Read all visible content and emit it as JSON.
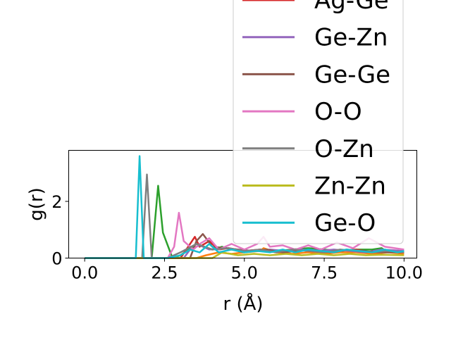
{
  "chart_data": {
    "type": "line",
    "xlabel": "r (Å)",
    "ylabel": "g(r)",
    "xlim": [
      -0.5,
      10.4
    ],
    "ylim": [
      0,
      3.8
    ],
    "xticks": [
      {
        "value": 0.0,
        "label": "0.0"
      },
      {
        "value": 2.5,
        "label": "2.5"
      },
      {
        "value": 5.0,
        "label": "5.0"
      },
      {
        "value": 7.5,
        "label": "7.5"
      },
      {
        "value": 10.0,
        "label": "10.0"
      }
    ],
    "yticks": [
      {
        "value": 0,
        "label": "0"
      },
      {
        "value": 2,
        "label": "2"
      }
    ],
    "grid": false,
    "legend_position": "upper-right (overflowing above plot)",
    "series": [
      {
        "name": "",
        "color": "#ff7f0e",
        "x": [
          0.0,
          3.5,
          3.8,
          4.2,
          4.6,
          5.0,
          5.5,
          5.6,
          6.0,
          6.5,
          7.0,
          7.5,
          8.0,
          8.5,
          9.0,
          9.5,
          10.0
        ],
        "y": [
          0.0,
          0.0,
          0.1,
          0.2,
          0.15,
          0.2,
          0.25,
          0.35,
          0.2,
          0.15,
          0.2,
          0.15,
          0.2,
          0.2,
          0.15,
          0.2,
          0.15
        ]
      },
      {
        "name": "",
        "color": "#2ca02c",
        "x": [
          0.0,
          2.1,
          2.3,
          2.45,
          2.6,
          2.75,
          3.0,
          3.5,
          4.0,
          4.3,
          4.6,
          5.0,
          5.5,
          6.0,
          6.5,
          7.0,
          7.5,
          8.0,
          8.5,
          9.0,
          9.3,
          9.5,
          10.0
        ],
        "y": [
          0.0,
          0.0,
          2.55,
          0.9,
          0.45,
          0.0,
          0.1,
          0.5,
          0.3,
          0.4,
          0.3,
          0.2,
          0.3,
          0.25,
          0.3,
          0.35,
          0.3,
          0.25,
          0.3,
          0.3,
          0.35,
          0.2,
          0.25
        ]
      },
      {
        "name": "Ag-Ge",
        "color": "#d62728",
        "x": [
          0.0,
          3.0,
          3.3,
          3.45,
          3.6,
          3.9,
          4.2,
          4.5,
          5.0,
          5.5,
          6.0,
          6.5,
          7.0,
          7.5,
          8.0,
          8.5,
          9.0,
          9.5,
          10.0
        ],
        "y": [
          0.0,
          0.0,
          0.5,
          0.75,
          0.4,
          0.6,
          0.3,
          0.35,
          0.25,
          0.3,
          0.2,
          0.3,
          0.25,
          0.2,
          0.25,
          0.3,
          0.2,
          0.25,
          0.2
        ]
      },
      {
        "name": "Ge-Zn",
        "color": "#9467bd",
        "x": [
          0.0,
          3.1,
          3.3,
          3.6,
          3.9,
          4.3,
          4.8,
          5.3,
          5.8,
          6.3,
          6.8,
          7.3,
          7.8,
          8.3,
          8.8,
          9.3,
          10.0
        ],
        "y": [
          0.0,
          0.0,
          0.3,
          0.45,
          0.3,
          0.35,
          0.3,
          0.25,
          0.3,
          0.25,
          0.3,
          0.25,
          0.3,
          0.25,
          0.2,
          0.3,
          0.25
        ]
      },
      {
        "name": "Ge-Ge",
        "color": "#8c564b",
        "x": [
          0.0,
          3.3,
          3.5,
          3.7,
          4.0,
          4.4,
          4.8,
          5.2,
          5.7,
          6.2,
          6.7,
          7.2,
          7.7,
          8.2,
          8.7,
          9.2,
          10.0
        ],
        "y": [
          0.0,
          0.0,
          0.6,
          0.85,
          0.4,
          0.35,
          0.3,
          0.25,
          0.3,
          0.2,
          0.25,
          0.3,
          0.2,
          0.3,
          0.25,
          0.2,
          0.2
        ]
      },
      {
        "name": "O-O",
        "color": "#e377c2",
        "x": [
          0.0,
          2.6,
          2.8,
          2.95,
          3.1,
          3.4,
          3.6,
          3.9,
          4.2,
          4.6,
          5.0,
          5.4,
          5.6,
          5.8,
          6.2,
          6.6,
          7.0,
          7.4,
          7.9,
          8.4,
          8.9,
          9.4,
          10.0
        ],
        "y": [
          0.0,
          0.0,
          0.4,
          1.6,
          0.6,
          0.3,
          0.5,
          0.7,
          0.3,
          0.5,
          0.3,
          0.5,
          0.75,
          0.4,
          0.45,
          0.3,
          0.45,
          0.3,
          0.55,
          0.35,
          0.7,
          0.4,
          0.3
        ]
      },
      {
        "name": "O-Zn",
        "color": "#7f7f7f",
        "x": [
          0.0,
          1.8,
          1.95,
          2.1,
          2.6,
          3.0,
          3.5,
          4.0,
          4.5,
          5.0,
          5.5,
          6.0,
          6.5,
          7.0,
          7.5,
          8.0,
          8.5,
          9.0,
          9.5,
          10.0
        ],
        "y": [
          0.0,
          0.0,
          2.95,
          0.0,
          0.0,
          0.2,
          0.5,
          0.3,
          0.35,
          0.25,
          0.3,
          0.2,
          0.3,
          0.25,
          0.2,
          0.3,
          0.25,
          0.2,
          0.25,
          0.2
        ]
      },
      {
        "name": "Zn-Zn",
        "color": "#bcbd22",
        "x": [
          0.0,
          4.0,
          4.3,
          4.8,
          5.3,
          5.8,
          6.3,
          6.8,
          7.3,
          7.8,
          8.3,
          8.8,
          9.3,
          10.0
        ],
        "y": [
          0.0,
          0.0,
          0.2,
          0.1,
          0.15,
          0.1,
          0.15,
          0.1,
          0.15,
          0.1,
          0.15,
          0.1,
          0.12,
          0.1
        ]
      },
      {
        "name": "Ge-O",
        "color": "#17becf",
        "x": [
          0.0,
          1.6,
          1.72,
          1.85,
          2.6,
          3.0,
          3.3,
          3.6,
          3.9,
          4.2,
          4.6,
          5.0,
          5.4,
          5.8,
          6.2,
          6.6,
          7.0,
          7.4,
          7.8,
          8.2,
          8.6,
          9.0,
          9.4,
          9.8,
          10.0
        ],
        "y": [
          0.0,
          0.0,
          3.6,
          0.0,
          0.0,
          0.1,
          0.3,
          0.2,
          0.5,
          0.2,
          0.3,
          0.2,
          0.25,
          0.2,
          0.3,
          0.2,
          0.3,
          0.25,
          0.2,
          0.3,
          0.25,
          0.2,
          0.3,
          0.2,
          0.25
        ]
      }
    ],
    "legend_entries": [
      {
        "name": "Ag-Ge",
        "color": "#d62728"
      },
      {
        "name": "Ge-Zn",
        "color": "#9467bd"
      },
      {
        "name": "Ge-Ge",
        "color": "#8c564b"
      },
      {
        "name": "O-O",
        "color": "#e377c2"
      },
      {
        "name": "O-Zn",
        "color": "#7f7f7f"
      },
      {
        "name": "Zn-Zn",
        "color": "#bcbd22"
      },
      {
        "name": "Ge-O",
        "color": "#17becf"
      }
    ]
  }
}
